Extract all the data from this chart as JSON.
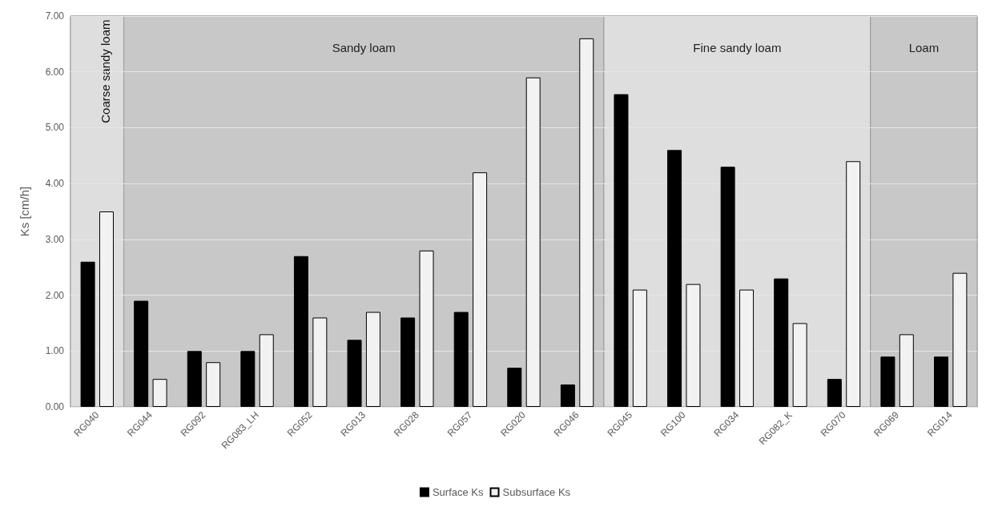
{
  "chart_data": {
    "type": "bar",
    "ylabel": "Ks [cm/h]",
    "categories": [
      "RG040",
      "RG044",
      "RG092",
      "RG083_LH",
      "RG052",
      "RG013",
      "RG028",
      "RG057",
      "RG020",
      "RG046",
      "RG045",
      "RG100",
      "RG034",
      "RG082_K",
      "RG070",
      "RG069",
      "RG014"
    ],
    "series": [
      {
        "name": "Surface Ks",
        "color": "#000000",
        "values": [
          2.6,
          1.9,
          1.0,
          1.0,
          2.7,
          1.2,
          1.6,
          1.7,
          0.7,
          0.4,
          5.6,
          4.6,
          4.3,
          2.3,
          0.5,
          0.9,
          0.9
        ]
      },
      {
        "name": "Subsurface Ks",
        "color": "#f2f2f2",
        "values": [
          3.5,
          0.5,
          0.8,
          1.3,
          1.6,
          1.7,
          2.8,
          4.2,
          5.9,
          6.6,
          2.1,
          2.2,
          2.1,
          1.5,
          4.4,
          1.3,
          2.4
        ]
      }
    ],
    "ylim": [
      0,
      7
    ],
    "yticks": [
      {
        "value": 0,
        "label": "0.00"
      },
      {
        "value": 1,
        "label": "1.00"
      },
      {
        "value": 2,
        "label": "2.00"
      },
      {
        "value": 3,
        "label": "3.00"
      },
      {
        "value": 4,
        "label": "4.00"
      },
      {
        "value": 5,
        "label": "5.00"
      },
      {
        "value": 6,
        "label": "6.00"
      },
      {
        "value": 7,
        "label": "7.00"
      }
    ],
    "bands": [
      {
        "axis": "x",
        "from": "RG040",
        "to": "RG040",
        "label": "Coarse sandy loam",
        "color": "#dedede"
      },
      {
        "axis": "x",
        "from": "RG044",
        "to": "RG046",
        "label": "Sandy loam",
        "color": "#c8c8c8"
      },
      {
        "axis": "x",
        "from": "RG045",
        "to": "RG070",
        "label": "Fine sandy loam",
        "color": "#dedede"
      },
      {
        "axis": "x",
        "from": "RG069",
        "to": "RG014",
        "label": "Loam",
        "color": "#c8c8c8"
      }
    ],
    "grid": "y",
    "legend": "bottom"
  }
}
